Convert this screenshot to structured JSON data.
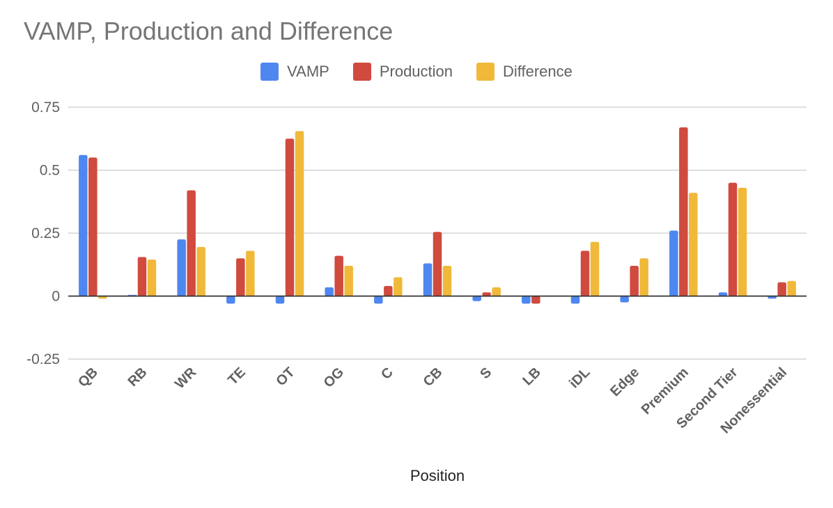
{
  "chart_data": {
    "type": "bar",
    "title": "VAMP, Production and Difference",
    "xlabel": "Position",
    "ylabel": "",
    "ylim": [
      -0.25,
      0.75
    ],
    "yticks": [
      0.75,
      0.5,
      0.25,
      0,
      -0.25
    ],
    "ytick_labels": [
      "0.75",
      "0.5",
      "0.25",
      "0",
      "-0.25"
    ],
    "grid": true,
    "legend_position": "top",
    "categories": [
      "QB",
      "RB",
      "WR",
      "TE",
      "OT",
      "OG",
      "C",
      "CB",
      "S",
      "LB",
      "iDL",
      "Edge",
      "Premium",
      "Second Tier",
      "Nonessential"
    ],
    "series": [
      {
        "name": "VAMP",
        "color": "#4e87f0",
        "values": [
          0.56,
          0.005,
          0.225,
          -0.03,
          -0.03,
          0.035,
          -0.03,
          0.13,
          -0.02,
          -0.03,
          -0.03,
          -0.025,
          0.26,
          0.015,
          -0.01
        ]
      },
      {
        "name": "Production",
        "color": "#d04a3e",
        "values": [
          0.55,
          0.155,
          0.42,
          0.15,
          0.625,
          0.16,
          0.04,
          0.255,
          0.015,
          -0.03,
          0.18,
          0.12,
          0.67,
          0.45,
          0.055
        ]
      },
      {
        "name": "Difference",
        "color": "#f0b93a",
        "values": [
          -0.01,
          0.145,
          0.195,
          0.18,
          0.655,
          0.12,
          0.075,
          0.12,
          0.035,
          0,
          0.215,
          0.15,
          0.41,
          0.43,
          0.06
        ]
      }
    ]
  }
}
